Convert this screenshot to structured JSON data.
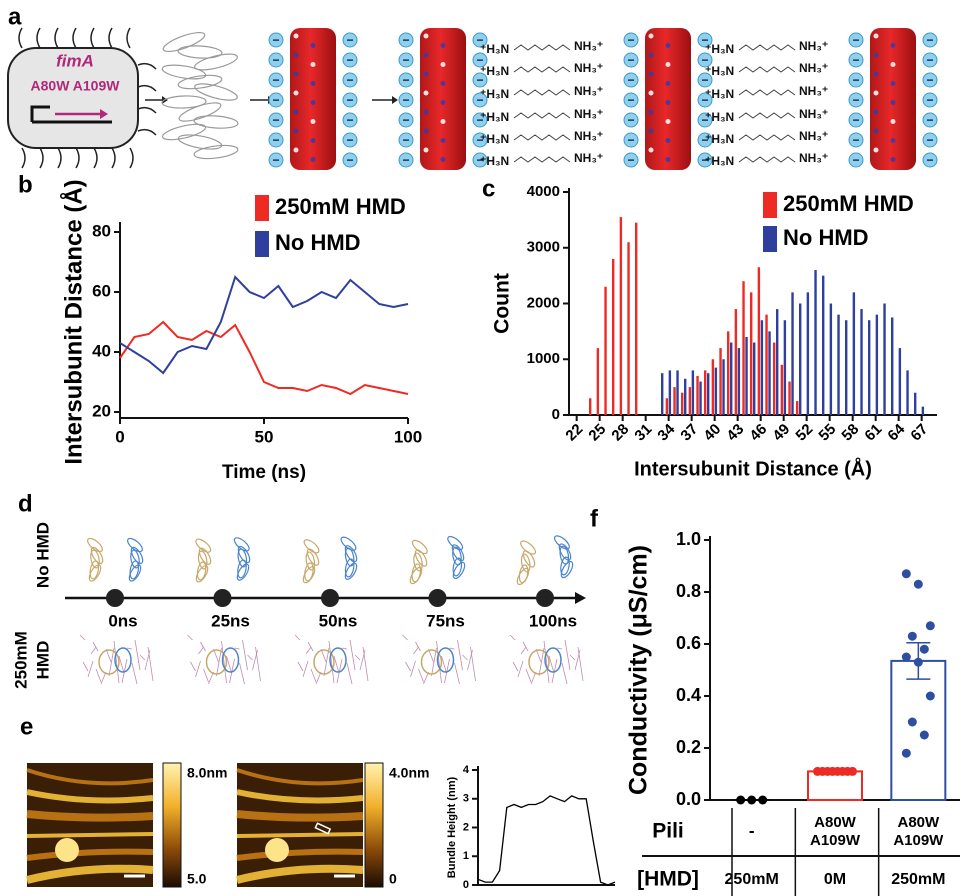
{
  "panel_labels": [
    "a",
    "b",
    "c",
    "d",
    "e",
    "f"
  ],
  "diagram": {
    "gene": "fimA",
    "mutation": "A80W A109W",
    "charge": "−",
    "amine_left": "⁺H₃N",
    "amine_right": "NH₃⁺"
  },
  "timeline": {
    "rows": [
      [
        "No HMD"
      ],
      [
        "250mM",
        "HMD"
      ]
    ],
    "times": [
      "0ns",
      "25ns",
      "50ns",
      "75ns",
      "100ns"
    ]
  },
  "afm": {
    "scale1": [
      "8.0nm",
      "5.0"
    ],
    "scale2": [
      "4.0nm",
      "0"
    ]
  },
  "chart_data": [
    {
      "type": "line",
      "xlabel": "Time (ns)",
      "ylabel": "Intersubunit Distance (Å)",
      "legend": "upper right",
      "x": [
        0,
        5,
        10,
        15,
        20,
        25,
        30,
        35,
        40,
        45,
        50,
        55,
        60,
        65,
        70,
        75,
        80,
        85,
        90,
        95,
        100
      ],
      "xlim": [
        0,
        100
      ],
      "xticks": [
        0,
        50,
        100
      ],
      "ylim": [
        18,
        82
      ],
      "yticks": [
        20,
        40,
        60,
        80
      ],
      "series": [
        {
          "name": "250mM HMD",
          "color": "#ee2a24",
          "values": [
            38,
            45,
            46,
            50,
            45,
            44,
            47,
            45,
            49,
            40,
            30,
            28,
            28,
            27,
            29,
            28,
            26,
            29,
            28,
            27,
            26
          ]
        },
        {
          "name": "No HMD",
          "color": "#2e3f9e",
          "values": [
            43,
            40,
            37,
            33,
            40,
            42,
            41,
            50,
            65,
            60,
            58,
            62,
            55,
            57,
            60,
            58,
            64,
            60,
            56,
            55,
            56
          ]
        }
      ]
    },
    {
      "type": "bar",
      "xlabel": "Intersubunit Distance (Å)",
      "ylabel": "Count",
      "legend": "upper right",
      "xtick_rotation": 45,
      "x": [
        24,
        25,
        26,
        27,
        28,
        29,
        30,
        31,
        32,
        33,
        34,
        35,
        36,
        37,
        38,
        39,
        40,
        41,
        42,
        43,
        44,
        45,
        46,
        47,
        48,
        49,
        50,
        51,
        52,
        53,
        54,
        55,
        56,
        57,
        58,
        59,
        60,
        61,
        62,
        63,
        64,
        65,
        66,
        67
      ],
      "xlim": [
        21,
        69
      ],
      "xticks": [
        22,
        25,
        28,
        31,
        34,
        37,
        40,
        43,
        46,
        49,
        52,
        55,
        58,
        61,
        64,
        67
      ],
      "ylim": [
        0,
        4000
      ],
      "yticks": [
        0,
        1000,
        2000,
        3000,
        4000
      ],
      "series": [
        {
          "name": "250mM HMD",
          "color": "#ee2a24",
          "values": [
            300,
            1200,
            2300,
            2800,
            3550,
            3100,
            3450,
            null,
            null,
            null,
            300,
            500,
            400,
            500,
            700,
            800,
            1000,
            1200,
            1500,
            1900,
            2400,
            2200,
            2650,
            1800,
            1300,
            900,
            600,
            250,
            null,
            null,
            null,
            null,
            null,
            null,
            null,
            null,
            null,
            null,
            null,
            null,
            null,
            null,
            null,
            null
          ]
        },
        {
          "name": "No HMD",
          "color": "#2e3f9e",
          "values": [
            null,
            null,
            null,
            null,
            null,
            null,
            null,
            null,
            null,
            750,
            800,
            800,
            650,
            800,
            600,
            750,
            850,
            1000,
            1300,
            1200,
            1400,
            1300,
            1700,
            1500,
            1900,
            1700,
            2200,
            2000,
            2200,
            2600,
            2500,
            2000,
            1800,
            1700,
            2200,
            1900,
            1700,
            1800,
            2000,
            1750,
            1200,
            800,
            400,
            150
          ]
        }
      ]
    },
    {
      "type": "line",
      "ylabel": "Bundle Height (nm)",
      "x": [
        0,
        1,
        2,
        3,
        4,
        5,
        6,
        7,
        8,
        9,
        10,
        11,
        12,
        13,
        14,
        15,
        16,
        17,
        18,
        19
      ],
      "xlim": [
        0,
        19
      ],
      "ylim": [
        0,
        4
      ],
      "yticks": [
        0,
        1,
        2,
        3,
        4
      ],
      "series": [
        {
          "color": "#000000",
          "values": [
            0.2,
            0.1,
            0.1,
            0.5,
            2.7,
            2.8,
            2.7,
            2.8,
            2.8,
            2.9,
            3.1,
            3.0,
            2.9,
            3.1,
            3.0,
            3.0,
            1.5,
            0.1,
            0.0,
            0.1
          ]
        }
      ]
    },
    {
      "type": "bar",
      "ylabel": "Conductivity (μS/cm)",
      "ylim": [
        0,
        1
      ],
      "yticks": [
        {
          "value": 0,
          "label": "0.0"
        },
        0.2,
        0.4,
        0.6,
        0.8,
        {
          "value": 1,
          "label": "1.0"
        }
      ],
      "values": [
        0,
        0.11,
        0.535
      ],
      "errors": [
        0,
        0.005,
        0.07
      ],
      "colors": [
        "#000000",
        "#ee2a24",
        "#2e4ea0"
      ],
      "points": [
        [
          0,
          0,
          0
        ],
        [
          0.11,
          0.11,
          0.11,
          0.11,
          0.11,
          0.11,
          0.11,
          0.11
        ],
        [
          0.87,
          0.83,
          0.67,
          0.63,
          0.58,
          0.55,
          0.53,
          0.4,
          0.3,
          0.25,
          0.18
        ]
      ],
      "table": [
        {
          "label": "Pili",
          "cells": [
            [
              "-"
            ],
            [
              "A80W",
              "A109W"
            ],
            [
              "A80W",
              "A109W"
            ]
          ]
        },
        {
          "label": "[HMD]",
          "cells": [
            [
              "250mM"
            ],
            [
              "0M"
            ],
            [
              "250mM"
            ]
          ]
        }
      ]
    }
  ]
}
